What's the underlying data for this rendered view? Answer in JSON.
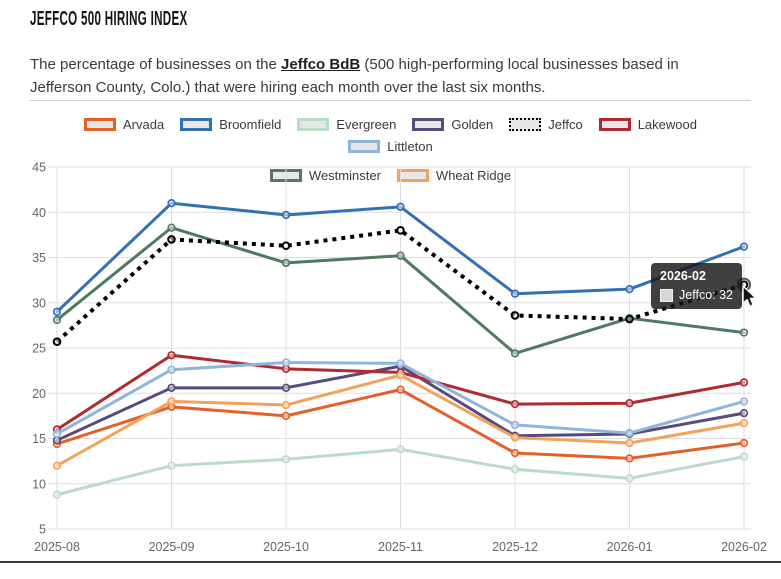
{
  "header": {
    "title": "JEFFCO 500 HIRING INDEX",
    "subtitle_before": "The percentage of businesses on the ",
    "subtitle_link": "Jeffco BdB",
    "subtitle_after_line1": " (500 high-performing local businesses based in",
    "subtitle_after_line2": "Jefferson County, Colo.) that were hiring each month over the last six months."
  },
  "chart_data": {
    "type": "line",
    "x": [
      "2025-08",
      "2025-09",
      "2025-10",
      "2025-11",
      "2025-12",
      "2026-01",
      "2026-02"
    ],
    "series": [
      {
        "name": "Arvada",
        "color": "#E55F28",
        "style": "solid",
        "values": [
          14.4,
          18.5,
          17.5,
          20.4,
          13.4,
          12.8,
          14.5
        ]
      },
      {
        "name": "Broomfield",
        "color": "#3370B4",
        "style": "solid",
        "values": [
          29.0,
          41.0,
          39.7,
          40.6,
          31.0,
          31.5,
          36.2
        ]
      },
      {
        "name": "Evergreen",
        "color": "#B9DCC7",
        "style": "solid",
        "values": [
          8.8,
          12.0,
          12.7,
          13.8,
          11.6,
          10.6,
          13.0
        ]
      },
      {
        "name": "Golden",
        "color": "#594A7D",
        "style": "solid",
        "values": [
          14.8,
          20.6,
          20.6,
          23.0,
          15.3,
          15.5,
          17.8
        ]
      },
      {
        "name": "Jeffco",
        "color": "#000000",
        "style": "dotted",
        "values": [
          25.7,
          37.0,
          36.3,
          38.0,
          28.6,
          28.2,
          32
        ]
      },
      {
        "name": "Lakewood",
        "color": "#AF2B31",
        "style": "solid",
        "values": [
          16.0,
          24.2,
          22.7,
          22.3,
          18.8,
          18.9,
          21.2
        ]
      },
      {
        "name": "Littleton",
        "color": "#90B5DA",
        "style": "solid",
        "values": [
          15.5,
          22.6,
          23.4,
          23.3,
          16.5,
          15.6,
          19.1
        ]
      },
      {
        "name": "Westminster",
        "color": "#4E7A60",
        "style": "solid",
        "values": [
          28.1,
          38.3,
          34.4,
          35.2,
          24.4,
          28.3,
          26.7
        ]
      },
      {
        "name": "Wheat Ridge",
        "color": "#F2A359",
        "style": "solid",
        "values": [
          12.0,
          19.1,
          18.7,
          22.0,
          15.1,
          14.5,
          16.7
        ]
      }
    ],
    "ylim": [
      5,
      45
    ],
    "ytick_step": 5,
    "grid": true,
    "legend_position": "top",
    "legend_row_break_index": 7
  },
  "tooltip": {
    "title": "2026-02",
    "label": "Jeffco: 32",
    "highlight_series": "Jeffco",
    "highlight_index": 6
  }
}
